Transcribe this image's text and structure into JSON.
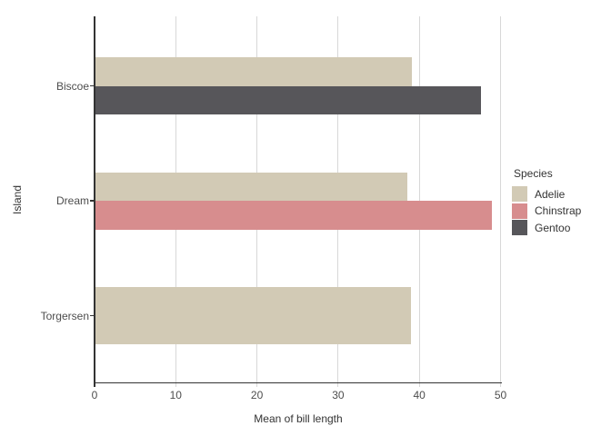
{
  "chart_data": {
    "type": "bar",
    "orientation": "horizontal",
    "title": "",
    "xlabel": "Mean of bill length",
    "ylabel": "Island",
    "xlim": [
      0,
      50
    ],
    "xticks": [
      0,
      10,
      20,
      30,
      40,
      50
    ],
    "categories": [
      "Biscoe",
      "Dream",
      "Torgersen"
    ],
    "grid": "vertical-only",
    "legend": {
      "title": "Species",
      "position": "right"
    },
    "series": [
      {
        "name": "Adelie",
        "color": "#d2cab5",
        "values": [
          38.98,
          38.5,
          38.95
        ]
      },
      {
        "name": "Chinstrap",
        "color": "#d78d8e",
        "values": [
          null,
          48.83,
          null
        ]
      },
      {
        "name": "Gentoo",
        "color": "#57565a",
        "values": [
          47.5,
          null,
          null
        ]
      }
    ]
  },
  "colors": {
    "background": "#ffffff",
    "gridline": "#d8d8d8",
    "axis_line": "#333333",
    "tick_label": "#4d4d4d",
    "title_text": "#333333"
  }
}
